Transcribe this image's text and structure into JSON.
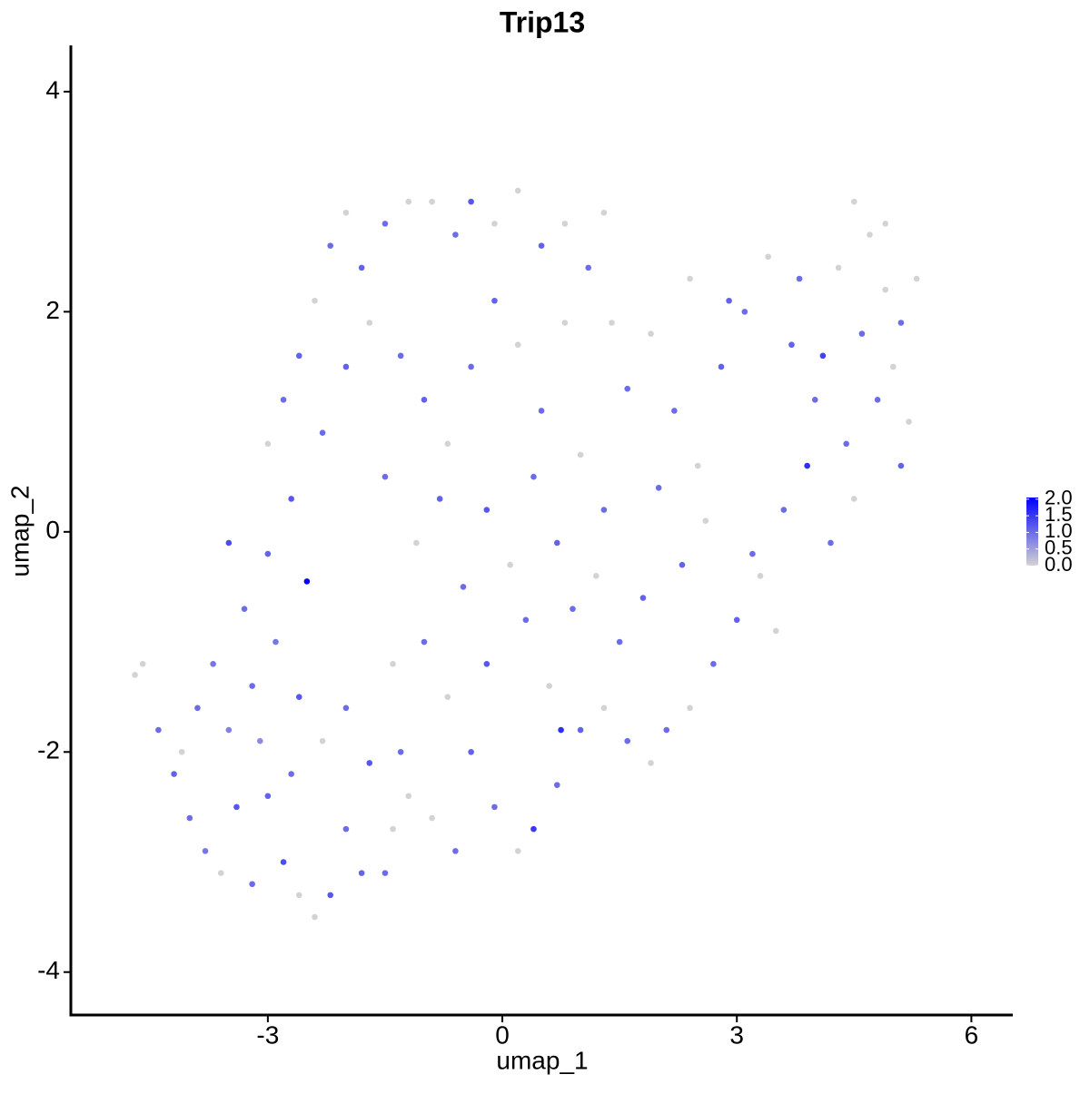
{
  "chart_data": {
    "type": "scatter",
    "title": "Trip13",
    "x_label": "umap_1",
    "y_label": "umap_2",
    "xlim": [
      -5.52,
      6.53
    ],
    "xticks": [
      -3,
      0,
      3,
      6
    ],
    "ylim": [
      -4.39,
      4.42
    ],
    "yticks": [
      -4,
      -2,
      0,
      2,
      4
    ],
    "color_low": "#d3d3d3",
    "color_high": "#0000ff",
    "colorbar_lim": [
      0,
      2.05
    ],
    "colorbar_ticks": [
      {
        "value": 0,
        "label": "0.0"
      },
      {
        "value": 0.5,
        "label": "0.5"
      },
      {
        "value": 1,
        "label": "1.0"
      },
      {
        "value": 1.5,
        "label": "1.5"
      },
      {
        "value": 2,
        "label": "2.0"
      }
    ],
    "x": [
      -4.7,
      -4.6,
      -4.4,
      -4.2,
      -4.0,
      -3.8,
      -3.6,
      -3.4,
      -3.2,
      -3.0,
      -2.8,
      -2.6,
      -2.4,
      -2.2,
      -2.0,
      -1.8,
      -1.5,
      -1.4,
      -1.2,
      -3.9,
      -3.5,
      -3.2,
      -2.9,
      -2.6,
      -2.3,
      -2.0,
      -1.7,
      -1.4,
      -3.7,
      -3.3,
      -3.0,
      -2.5,
      -3.5,
      -2.7,
      -4.1,
      -3.1,
      -3.0,
      -2.8,
      -2.6,
      -2.4,
      -2.2,
      -2.0,
      -1.8,
      -1.5,
      -1.2,
      -0.9,
      -0.6,
      -0.4,
      -0.1,
      0.2,
      0.5,
      0.8,
      1.1,
      1.3,
      -2.7,
      -2.3,
      -2.0,
      -1.7,
      -1.3,
      -1.0,
      -0.7,
      -0.4,
      -0.1,
      0.2,
      0.5,
      0.8,
      -1.5,
      -1.1,
      -0.8,
      -0.5,
      -0.2,
      0.1,
      0.4,
      0.7,
      1.0,
      1.3,
      -1.0,
      -0.7,
      -0.4,
      -0.1,
      0.2,
      0.4,
      0.7,
      1.0,
      1.3,
      1.6,
      -0.2,
      0.3,
      0.6,
      0.75,
      0.9,
      1.2,
      1.5,
      1.8,
      -1.3,
      -0.9,
      -0.6,
      1.6,
      1.9,
      2.2,
      2.5,
      2.8,
      3.1,
      3.4,
      3.7,
      4.0,
      4.3,
      4.5,
      4.7,
      4.9,
      5.1,
      5.3,
      5.2,
      5.1,
      4.8,
      4.5,
      4.2,
      3.9,
      3.6,
      3.3,
      3.0,
      2.7,
      2.4,
      2.1,
      1.9,
      3.5,
      3.2,
      2.6,
      2.3,
      2.0,
      4.6,
      4.1,
      3.8,
      2.9,
      2.4,
      1.4,
      4.9,
      5.0,
      4.4
    ],
    "y": [
      -1.3,
      -1.2,
      -1.8,
      -2.2,
      -2.6,
      -2.9,
      -3.1,
      -2.5,
      -3.2,
      -2.4,
      -3.0,
      -3.3,
      -3.5,
      -3.3,
      -2.7,
      -3.1,
      -3.1,
      -2.7,
      -2.4,
      -1.6,
      -1.8,
      -1.4,
      -1.0,
      -1.5,
      -1.9,
      -1.6,
      -2.1,
      -1.2,
      -1.2,
      -0.7,
      -0.2,
      -0.45,
      -0.1,
      -2.2,
      -2.0,
      -1.9,
      0.8,
      1.2,
      1.6,
      2.1,
      2.6,
      2.9,
      2.4,
      2.8,
      3.0,
      3.0,
      2.7,
      3.0,
      2.8,
      3.1,
      2.6,
      2.8,
      2.4,
      2.9,
      0.3,
      0.9,
      1.5,
      1.9,
      1.6,
      1.2,
      0.8,
      1.5,
      2.1,
      1.7,
      1.1,
      1.9,
      0.5,
      -0.1,
      0.3,
      -0.5,
      0.2,
      -0.3,
      0.5,
      -0.1,
      0.7,
      0.2,
      -1.0,
      -1.5,
      -2.0,
      -2.5,
      -2.9,
      -2.7,
      -2.3,
      -1.8,
      -1.6,
      -1.9,
      -1.2,
      -0.8,
      -1.4,
      -1.8,
      -0.7,
      -0.4,
      -1.0,
      -0.6,
      -2.0,
      -2.6,
      -2.9,
      1.3,
      1.8,
      1.1,
      0.6,
      1.5,
      2.0,
      2.5,
      1.7,
      1.2,
      2.4,
      3.0,
      2.7,
      2.2,
      1.9,
      2.3,
      1.0,
      0.6,
      1.2,
      0.3,
      -0.1,
      0.6,
      0.2,
      -0.4,
      -0.8,
      -1.2,
      -1.6,
      -1.8,
      -2.1,
      -0.9,
      -0.2,
      0.1,
      -0.3,
      0.4,
      1.8,
      1.6,
      2.3,
      2.1,
      2.3,
      1.9,
      2.8,
      1.5,
      0.8
    ],
    "values": [
      0,
      0,
      1.0,
      1.1,
      1.0,
      0.9,
      0,
      1.2,
      1.0,
      1.1,
      1.3,
      0,
      0,
      1.2,
      1.0,
      1.1,
      1.0,
      0,
      0,
      1.0,
      0.8,
      1.0,
      0.9,
      1.2,
      0,
      1.0,
      1.2,
      0,
      0.9,
      1.0,
      1.1,
      2.05,
      1.3,
      1.0,
      0,
      0.7,
      0,
      1.0,
      1.1,
      0,
      1.0,
      0,
      1.1,
      1.0,
      0,
      0,
      1.0,
      1.2,
      0,
      0,
      1.1,
      0,
      1.0,
      0,
      1.2,
      1.0,
      1.1,
      0,
      1.0,
      1.1,
      0,
      1.0,
      1.1,
      0,
      1.0,
      0,
      1.0,
      0,
      1.1,
      1.0,
      1.2,
      0,
      1.0,
      1.1,
      0,
      1.0,
      1.0,
      0,
      1.1,
      1.0,
      0,
      1.5,
      1.0,
      1.1,
      0,
      1.0,
      1.2,
      1.0,
      0,
      1.6,
      1.0,
      0,
      1.0,
      1.1,
      1.0,
      0,
      1.0,
      1.0,
      0,
      1.0,
      0,
      1.1,
      1.0,
      0,
      1.1,
      1.0,
      0,
      0,
      0,
      0,
      1.0,
      0,
      0,
      1.1,
      1.0,
      0,
      1.0,
      1.6,
      1.0,
      0,
      1.1,
      1.0,
      0,
      1.0,
      0,
      0,
      1.0,
      0,
      1.1,
      1.0,
      1.0,
      1.4,
      1.0,
      1.1,
      0,
      0,
      0,
      0,
      1.0
    ]
  }
}
